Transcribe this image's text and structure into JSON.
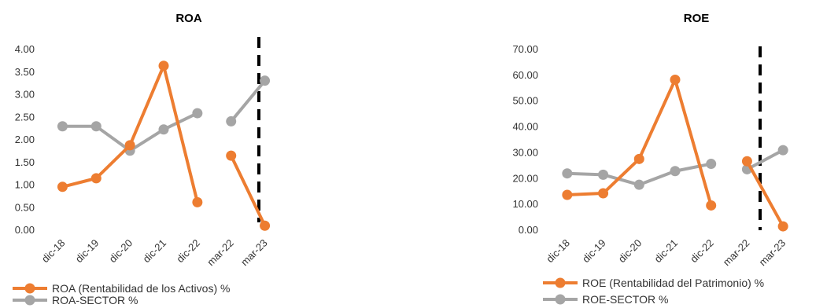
{
  "chart_data": [
    {
      "type": "line",
      "title": "ROA",
      "categories": [
        "dic-18",
        "dic-19",
        "dic-20",
        "dic-21",
        "dic-22",
        "mar-22",
        "mar-23"
      ],
      "ylim": [
        0,
        4
      ],
      "yticks": [
        "0.00",
        "0.50",
        "1.00",
        "1.50",
        "2.00",
        "2.50",
        "3.00",
        "3.50",
        "4.00"
      ],
      "grid": false,
      "divider_after_category": 4,
      "legend_position": "bottom-left",
      "series": [
        {
          "name": "ROA (Rentabilidad de los Activos) %",
          "color": "#ED7D31",
          "segments": [
            [
              0,
              4
            ],
            [
              5,
              6
            ]
          ],
          "values": [
            0.96,
            1.15,
            1.88,
            3.64,
            0.62,
            1.65,
            0.1
          ]
        },
        {
          "name": "ROA-SECTOR  %",
          "color": "#A5A5A5",
          "segments": [
            [
              0,
              4
            ],
            [
              5,
              6
            ]
          ],
          "values": [
            2.3,
            2.3,
            1.76,
            2.23,
            2.59,
            2.41,
            3.31
          ]
        }
      ]
    },
    {
      "type": "line",
      "title": "ROE",
      "categories": [
        "dic-18",
        "dic-19",
        "dic-20",
        "dic-21",
        "dic-22",
        "mar-22",
        "mar-23"
      ],
      "ylim": [
        0,
        70
      ],
      "yticks": [
        "0.00",
        "10.00",
        "20.00",
        "30.00",
        "40.00",
        "50.00",
        "60.00",
        "70.00"
      ],
      "grid": false,
      "divider_after_category": 4,
      "legend_position": "bottom-left",
      "series": [
        {
          "name": "ROE (Rentabilidad del Patrimonio) %",
          "color": "#ED7D31",
          "segments": [
            [
              0,
              4
            ],
            [
              5,
              6
            ]
          ],
          "values": [
            13.7,
            14.3,
            27.6,
            58.3,
            9.6,
            26.7,
            1.5
          ]
        },
        {
          "name": "ROE-SECTOR %",
          "color": "#A5A5A5",
          "segments": [
            [
              0,
              4
            ],
            [
              5,
              6
            ]
          ],
          "values": [
            22.0,
            21.5,
            17.6,
            22.9,
            25.7,
            23.6,
            31.0
          ]
        }
      ]
    }
  ]
}
